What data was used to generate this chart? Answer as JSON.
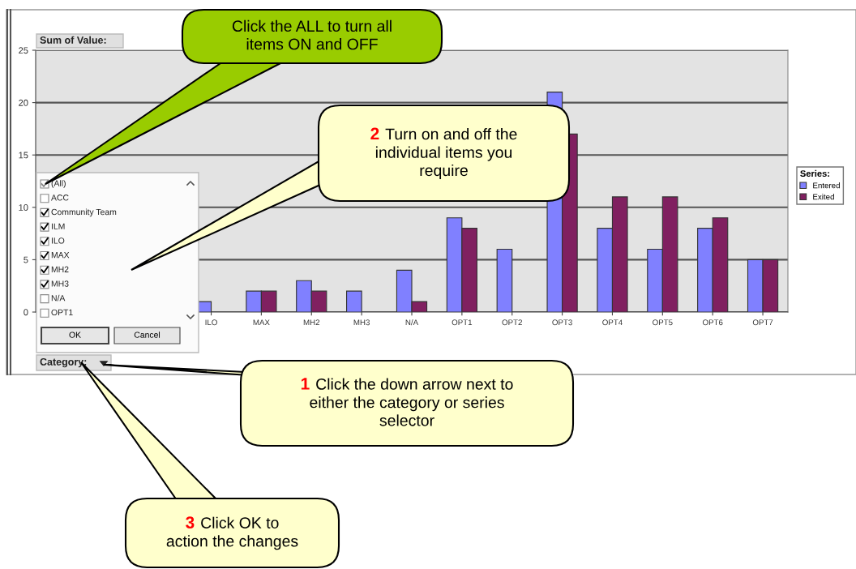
{
  "chart_data": {
    "type": "bar",
    "categories": [
      null,
      null,
      null,
      "ILO",
      "MAX",
      "MH2",
      "MH3",
      "N/A",
      "OPT1",
      "OPT2",
      "OPT3",
      "OPT4",
      "OPT5",
      "OPT6",
      "OPT7"
    ],
    "series": [
      {
        "name": "Entered",
        "color": "#8080ff",
        "values": [
          null,
          null,
          null,
          1,
          2,
          3,
          2,
          4,
          9,
          6,
          21,
          8,
          6,
          8,
          5
        ]
      },
      {
        "name": "Exited",
        "color": "#802060",
        "values": [
          null,
          null,
          null,
          null,
          2,
          2,
          null,
          1,
          8,
          null,
          17,
          11,
          11,
          9,
          5
        ]
      }
    ],
    "ylim": [
      0,
      25
    ],
    "yticks": [
      0,
      5,
      10,
      15,
      20,
      25
    ],
    "grid": "y",
    "legend": "right",
    "legend_title": "Series:",
    "annotations": [
      "Sum of Value:",
      "Category:",
      "Click the ALL to turn all\nitems ON and OFF",
      "2",
      "Turn on and off the\nindividual items you\nrequire",
      "1",
      "Click the down arrow next to\neither the category or series\nselector",
      "3",
      "Click OK to\naction the changes",
      "(All)",
      "ACC",
      "Community Team",
      "ILM",
      "ILO",
      "MAX",
      "MH2",
      "MH3",
      "N/A",
      "OPT1",
      "OK",
      "Cancel"
    ]
  }
}
